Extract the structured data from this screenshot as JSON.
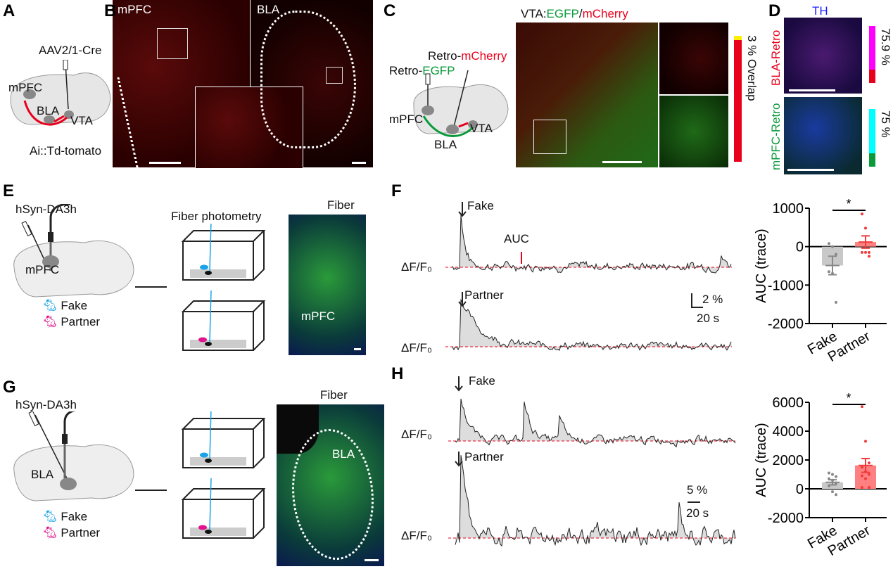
{
  "panels": {
    "A": {
      "label": "A",
      "virus": "AAV2/1-Cre",
      "regions": [
        "mPFC",
        "BLA",
        "VTA"
      ],
      "mouse": "Ai::Td-tomato"
    },
    "B": {
      "label": "B",
      "left_region": "mPFC",
      "right_region": "BLA"
    },
    "C": {
      "label": "C",
      "retro_green_prefix": "Retro-",
      "retro_green": "EGFP",
      "retro_red_prefix": "Retro-",
      "retro_red": "mCherry",
      "regions": [
        "mPFC",
        "BLA",
        "VTA"
      ],
      "title_prefix": "VTA:",
      "title_green": "EGFP",
      "title_sep": "/",
      "title_red": "mCherry",
      "overlap": "3 % Overlap"
    },
    "D": {
      "label": "D",
      "stain": "TH",
      "top_label": "BLA-Retro",
      "top_pct": "75.9 %",
      "bottom_label": "mPFC-Retro",
      "bottom_pct": "75 %"
    },
    "E": {
      "label": "E",
      "sensor": "hSyn-DA3h",
      "region": "mPFC",
      "setup": "Fiber photometry",
      "fiber": "Fiber",
      "image_region": "mPFC",
      "legend": [
        "Fake",
        "Partner"
      ]
    },
    "F": {
      "label": "F",
      "trace1": "Fake",
      "trace2": "Partner",
      "auc": "AUC",
      "ylabel": "ΔF/F₀",
      "scale_y": "2 %",
      "scale_x": "20 s"
    },
    "G": {
      "label": "G",
      "sensor": "hSyn-DA3h",
      "region": "BLA",
      "fiber": "Fiber",
      "image_region": "BLA",
      "legend": [
        "Fake",
        "Partner"
      ]
    },
    "H": {
      "label": "H",
      "trace1": "Fake",
      "trace2": "Partner",
      "ylabel": "ΔF/F₀",
      "scale_y": "5 %",
      "scale_x": "20 s"
    }
  },
  "colors": {
    "fake": "#1aa3e8",
    "partner": "#e0148c",
    "red": "#e8001c",
    "green": "#0a9a3a",
    "magenta": "#ff00ff",
    "cyan": "#00ffff",
    "yellow": "#ffee00",
    "bar_fake": "#c8c8c8",
    "bar_partner": "#ff8080"
  },
  "chart_data": [
    {
      "type": "bar",
      "panel": "F",
      "categories": [
        "Fake",
        "Partner"
      ],
      "values": [
        -490,
        120
      ],
      "sem": [
        240,
        160
      ],
      "points": [
        [
          80,
          0,
          -200,
          -650,
          -700,
          -1450
        ],
        [
          850,
          480,
          -150,
          -150,
          -150,
          -250
        ]
      ],
      "ylabel": "AUC (trace)",
      "ylim": [
        -2000,
        1000
      ],
      "yticks": [
        "1000",
        "0",
        "-1000",
        "-2000"
      ],
      "yticks_v": [
        1000,
        0,
        -1000,
        -2000
      ],
      "significance": "*"
    },
    {
      "type": "bar",
      "panel": "H",
      "categories": [
        "Fake",
        "Partner"
      ],
      "values": [
        450,
        1620
      ],
      "sem": [
        180,
        480
      ],
      "points": [
        [
          1100,
          1000,
          850,
          700,
          600,
          400,
          200,
          -200,
          -400
        ],
        [
          5700,
          3300,
          1800,
          1500,
          1200,
          1000,
          900,
          700,
          100,
          100
        ]
      ],
      "ylabel": "AUC (trace)",
      "ylim": [
        -2000,
        6000
      ],
      "yticks": [
        "6000",
        "4000",
        "2000",
        "0",
        "-2000"
      ],
      "yticks_v": [
        6000,
        4000,
        2000,
        0,
        -2000
      ],
      "significance": "*"
    }
  ]
}
